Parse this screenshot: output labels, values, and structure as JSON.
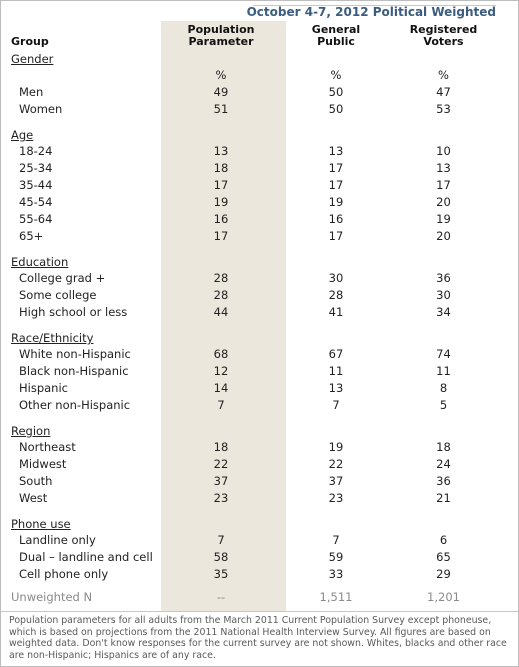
{
  "title": "October 4-7, 2012 Political Weighted",
  "columns": {
    "group": "Group",
    "population": [
      "Population",
      "Parameter"
    ],
    "general": [
      "General",
      "Public"
    ],
    "registered": [
      "Registered",
      "Voters"
    ]
  },
  "sections": [
    {
      "name": "Gender",
      "rows": [
        {
          "label": "Men",
          "pop": "%",
          "gp": "%",
          "rv": "%"
        },
        {
          "label": "Men",
          "pop": "49",
          "gp": "50",
          "rv": "47"
        },
        {
          "label": "Women",
          "pop": "51",
          "gp": "50",
          "rv": "53"
        }
      ]
    },
    {
      "name": "Age",
      "rows": [
        {
          "label": "18-24",
          "pop": "13",
          "gp": "13",
          "rv": "10"
        },
        {
          "label": "25-34",
          "pop": "18",
          "gp": "17",
          "rv": "13"
        },
        {
          "label": "35-44",
          "pop": "17",
          "gp": "17",
          "rv": "17"
        },
        {
          "label": "45-54",
          "pop": "19",
          "gp": "19",
          "rv": "20"
        },
        {
          "label": "55-64",
          "pop": "16",
          "gp": "16",
          "rv": "19"
        },
        {
          "label": "65+",
          "pop": "17",
          "gp": "17",
          "rv": "20"
        }
      ]
    },
    {
      "name": "Education",
      "rows": [
        {
          "label": "College grad +",
          "pop": "28",
          "gp": "30",
          "rv": "36"
        },
        {
          "label": "Some college",
          "pop": "28",
          "gp": "28",
          "rv": "30"
        },
        {
          "label": "High school or less",
          "pop": "44",
          "gp": "41",
          "rv": "34"
        }
      ]
    },
    {
      "name": "Race/Ethnicity",
      "rows": [
        {
          "label": "White non-Hispanic",
          "pop": "68",
          "gp": "67",
          "rv": "74"
        },
        {
          "label": "Black non-Hispanic",
          "pop": "12",
          "gp": "11",
          "rv": "11"
        },
        {
          "label": "Hispanic",
          "pop": "14",
          "gp": "13",
          "rv": "8"
        },
        {
          "label": "Other non-Hispanic",
          "pop": "7",
          "gp": "7",
          "rv": "5"
        }
      ]
    },
    {
      "name": "Region",
      "rows": [
        {
          "label": "Northeast",
          "pop": "18",
          "gp": "19",
          "rv": "18"
        },
        {
          "label": "Midwest",
          "pop": "22",
          "gp": "22",
          "rv": "24"
        },
        {
          "label": "South",
          "pop": "37",
          "gp": "37",
          "rv": "36"
        },
        {
          "label": "West",
          "pop": "23",
          "gp": "23",
          "rv": "21"
        }
      ]
    },
    {
      "name": "Phone use",
      "rows": [
        {
          "label": "Landline only",
          "pop": "7",
          "gp": "7",
          "rv": "6"
        },
        {
          "label": "Dual – landline and cell",
          "pop": "58",
          "gp": "59",
          "rv": "65"
        },
        {
          "label": "Cell phone only",
          "pop": "35",
          "gp": "33",
          "rv": "29"
        }
      ]
    }
  ],
  "unweighted": {
    "label": "Unweighted N",
    "pop": "--",
    "gp": "1,511",
    "rv": "1,201"
  },
  "note": "Population parameters for all adults from the March 2011 Current Population Survey except phoneuse, which is based on projections from the 2011 National Health Interview Survey. All figures are based on weighted data. Don't know responses for the current survey are not shown. Whites, blacks and other race are non-Hispanic; Hispanics are of any race."
}
